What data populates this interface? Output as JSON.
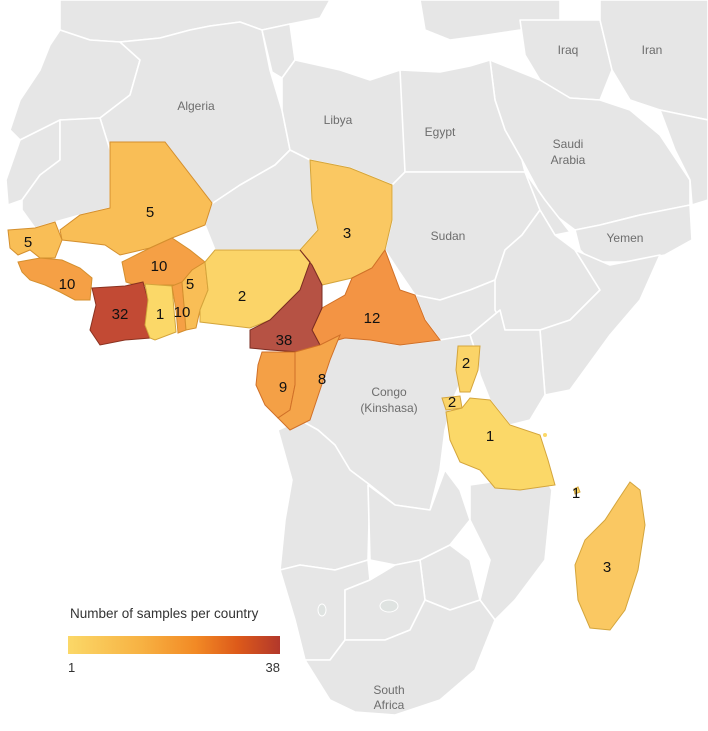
{
  "map": {
    "legend": {
      "title": "Number of samples per country",
      "min_label": "1",
      "max_label": "38",
      "color_low": "#fbd868",
      "color_high": "#b2382b"
    },
    "labels": {
      "iraq": "Iraq",
      "iran": "Iran",
      "algeria": "Algeria",
      "libya": "Libya",
      "egypt": "Egypt",
      "saudi_arabia_1": "Saudi",
      "saudi_arabia_2": "Arabia",
      "sudan": "Sudan",
      "yemen": "Yemen",
      "congo_1": "Congo",
      "congo_2": "(Kinshasa)",
      "south_africa_1": "South",
      "south_africa_2": "Africa"
    },
    "samples": {
      "mali": "5",
      "senegal": "5",
      "guinea": "10",
      "burkina_faso": "10",
      "cote_divoire": "32",
      "ghana": "1",
      "togo": "10",
      "benin": "5",
      "nigeria": "2",
      "chad": "3",
      "cameroon": "38",
      "car": "12",
      "gabon": "9",
      "congo": "8",
      "uganda": "2",
      "rwanda": "2",
      "tanzania": "1",
      "madagascar": "3",
      "comoros": "1"
    },
    "colors": {
      "land": "#e6e6e6",
      "v1": "#fbd868",
      "v2": "#fbd468",
      "v3": "#fac862",
      "v5": "#f9be56",
      "v8": "#f5a54a",
      "v9": "#f4a046",
      "v10": "#f5a045",
      "v12": "#f39444",
      "v32": "#c24a34",
      "v38": "#b65244"
    }
  }
}
